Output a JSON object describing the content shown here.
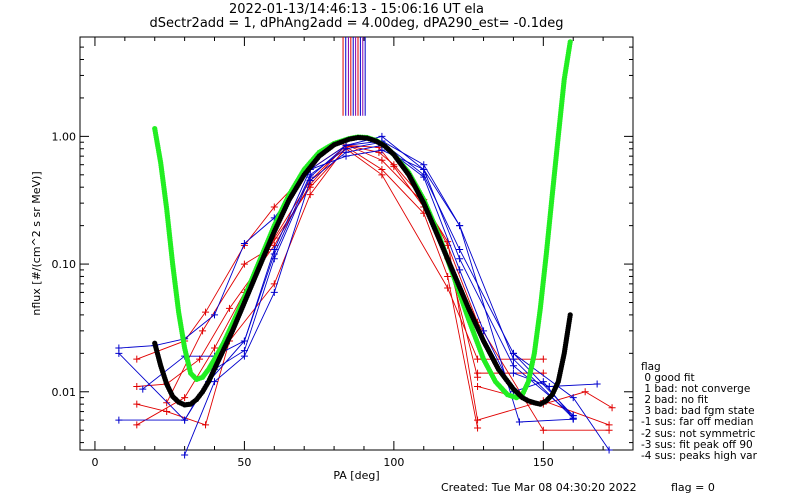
{
  "title_line1": "2022-01-13/14:46:13 - 15:06:16 UT ela",
  "title_line2": "dSectr2add = 1, dPhAng2add = 4.00deg, dPA290_est=  -0.1deg",
  "footer": {
    "created": "Created: Tue Mar 08 04:30:20 2022",
    "flag": "flag = 0"
  },
  "legend": {
    "title": "flag",
    "items": [
      " 0 good fit",
      " 1 bad: not converge",
      " 2 bad: no fit",
      " 3 bad: bad fgm state",
      "-1 sus: far off median",
      "-2 sus: not symmetric",
      "-3 sus: fit peak off 90",
      "-4 sus: peaks high var"
    ]
  },
  "colors": {
    "red": "#e00000",
    "blue": "#0000cc",
    "green": "#22ee22",
    "black": "#000000",
    "purple": "#8800aa"
  },
  "chart_data": {
    "type": "line",
    "xlabel": "PA [deg]",
    "ylabel": "nflux [#/(cm^2 s sr MeV)]",
    "xlim": [
      -5,
      180
    ],
    "ylim": [
      0.0035,
      6.0
    ],
    "yscale": "log",
    "xticks": [
      0,
      50,
      100,
      150
    ],
    "xtick_labels": [
      "0",
      "50",
      "100",
      "150"
    ],
    "yticks": [
      0.01,
      0.1,
      1.0
    ],
    "ytick_labels": [
      "0.01",
      "0.10",
      "1.00"
    ],
    "vertical_lines": {
      "x": [
        83.0,
        83.9,
        84.8,
        85.6,
        86.4,
        87.2,
        88.0,
        88.8,
        89.6,
        90.4
      ],
      "y_range": [
        1.45,
        6.0
      ],
      "colors": [
        "red",
        "blue",
        "purple",
        "red",
        "blue",
        "purple",
        "red",
        "blue",
        "purple",
        "blue"
      ]
    },
    "series": [
      {
        "color": "green",
        "style": "dots",
        "x": [
          20,
          22,
          24,
          26,
          28,
          30,
          32,
          34,
          36,
          38,
          40,
          43,
          46,
          50,
          55,
          60,
          65,
          70,
          75,
          80,
          85,
          88,
          91,
          94,
          97,
          100,
          105,
          110,
          115,
          120,
          125,
          130,
          134,
          138,
          141,
          143,
          145,
          147,
          149,
          151,
          153,
          155,
          157,
          159
        ],
        "y": [
          1.15,
          0.62,
          0.27,
          0.1,
          0.042,
          0.022,
          0.014,
          0.0125,
          0.013,
          0.015,
          0.018,
          0.024,
          0.034,
          0.055,
          0.105,
          0.2,
          0.35,
          0.55,
          0.75,
          0.88,
          0.96,
          0.99,
          0.98,
          0.93,
          0.84,
          0.72,
          0.52,
          0.32,
          0.17,
          0.08,
          0.037,
          0.018,
          0.012,
          0.0095,
          0.009,
          0.0095,
          0.012,
          0.02,
          0.045,
          0.12,
          0.35,
          1.0,
          2.8,
          5.5
        ]
      },
      {
        "color": "black",
        "style": "dots",
        "x": [
          20,
          22,
          24,
          26,
          28,
          30,
          32,
          34,
          36,
          38,
          42,
          46,
          50,
          55,
          60,
          65,
          70,
          75,
          80,
          85,
          88,
          91,
          94,
          97,
          100,
          105,
          110,
          115,
          120,
          125,
          130,
          135,
          140,
          143,
          145,
          147,
          149,
          151,
          153,
          155,
          157,
          159
        ],
        "y": [
          0.024,
          0.016,
          0.0115,
          0.0092,
          0.0083,
          0.0079,
          0.008,
          0.0087,
          0.01,
          0.012,
          0.019,
          0.03,
          0.05,
          0.095,
          0.18,
          0.32,
          0.5,
          0.7,
          0.86,
          0.95,
          0.98,
          0.97,
          0.92,
          0.84,
          0.72,
          0.5,
          0.3,
          0.16,
          0.085,
          0.045,
          0.025,
          0.015,
          0.0105,
          0.009,
          0.0085,
          0.0082,
          0.008,
          0.0085,
          0.0095,
          0.012,
          0.02,
          0.04
        ]
      },
      {
        "color": "red",
        "style": "line-plus",
        "x": [
          14,
          30,
          37,
          50,
          60,
          72,
          84,
          95,
          100,
          110,
          118,
          128
        ],
        "y": [
          0.018,
          0.025,
          0.042,
          0.14,
          0.28,
          0.55,
          0.85,
          0.82,
          0.58,
          0.28,
          0.11,
          0.013
        ]
      },
      {
        "color": "red",
        "style": "line-plus",
        "x": [
          14,
          30,
          40,
          50,
          60,
          72,
          84,
          95,
          100,
          110,
          118,
          128,
          150,
          172
        ],
        "y": [
          0.0055,
          0.009,
          0.022,
          0.06,
          0.16,
          0.45,
          0.85,
          0.75,
          0.6,
          0.32,
          0.14,
          0.035,
          0.005,
          0.005
        ]
      },
      {
        "color": "red",
        "style": "line-plus",
        "x": [
          14,
          24,
          35,
          45,
          60,
          72,
          84,
          96,
          110,
          118,
          128,
          150,
          172
        ],
        "y": [
          0.011,
          0.0115,
          0.018,
          0.045,
          0.14,
          0.42,
          0.86,
          0.65,
          0.3,
          0.15,
          0.006,
          0.0085,
          0.0055
        ]
      },
      {
        "color": "red",
        "style": "line-plus",
        "x": [
          14,
          24,
          37,
          45,
          60,
          72,
          84,
          96,
          110,
          118,
          128
        ],
        "y": [
          0.008,
          0.007,
          0.0055,
          0.025,
          0.07,
          0.35,
          0.83,
          0.55,
          0.25,
          0.08,
          0.0052
        ]
      },
      {
        "color": "red",
        "style": "line-plus",
        "x": [
          24,
          36,
          50,
          58,
          72,
          84,
          96,
          118,
          128,
          150
        ],
        "y": [
          0.0082,
          0.03,
          0.1,
          0.13,
          0.4,
          0.8,
          0.5,
          0.065,
          0.018,
          0.018
        ]
      },
      {
        "color": "red",
        "style": "line-plus",
        "x": [
          128,
          150,
          164,
          173
        ],
        "y": [
          0.011,
          0.008,
          0.01,
          0.0075
        ]
      },
      {
        "color": "red",
        "style": "line-plus",
        "x": [
          128,
          150
        ],
        "y": [
          0.014,
          0.014
        ]
      },
      {
        "color": "blue",
        "style": "line-plus",
        "x": [
          8,
          20,
          30,
          40,
          50,
          60,
          72,
          84,
          96,
          110,
          122,
          140,
          160
        ],
        "y": [
          0.022,
          0.023,
          0.026,
          0.04,
          0.145,
          0.23,
          0.55,
          0.85,
          1.0,
          0.55,
          0.11,
          0.016,
          0.0065
        ]
      },
      {
        "color": "blue",
        "style": "line-plus",
        "x": [
          8,
          30,
          40,
          50,
          60,
          72,
          84,
          96,
          110,
          122,
          140,
          160
        ],
        "y": [
          0.02,
          0.006,
          0.015,
          0.021,
          0.11,
          0.48,
          0.85,
          0.92,
          0.6,
          0.2,
          0.018,
          0.0062
        ]
      },
      {
        "color": "blue",
        "style": "line-plus",
        "x": [
          8,
          30,
          38,
          50,
          60,
          72,
          84,
          96,
          110,
          122,
          140,
          160
        ],
        "y": [
          0.006,
          0.006,
          0.012,
          0.025,
          0.12,
          0.5,
          0.8,
          0.9,
          0.5,
          0.13,
          0.02,
          0.0065
        ]
      },
      {
        "color": "blue",
        "style": "line-plus",
        "x": [
          30,
          40,
          50,
          60,
          72,
          84,
          96,
          110,
          122,
          130,
          140,
          150,
          160
        ],
        "y": [
          0.0032,
          0.012,
          0.019,
          0.06,
          0.45,
          0.75,
          0.85,
          0.48,
          0.09,
          0.03,
          0.01,
          0.012,
          0.0062
        ]
      },
      {
        "color": "blue",
        "style": "line-plus",
        "x": [
          16,
          30,
          40,
          50,
          60,
          72,
          84,
          96,
          110,
          122,
          142,
          160
        ],
        "y": [
          0.0105,
          0.019,
          0.019,
          0.025,
          0.13,
          0.55,
          0.7,
          0.78,
          0.55,
          0.2,
          0.0058,
          0.0061
        ]
      },
      {
        "color": "blue",
        "style": "line-plus",
        "x": [
          140,
          152,
          168
        ],
        "y": [
          0.014,
          0.011,
          0.0115
        ]
      },
      {
        "color": "blue",
        "style": "line-plus",
        "x": [
          140,
          160,
          172
        ],
        "y": [
          0.02,
          0.009,
          0.0035
        ]
      }
    ]
  }
}
